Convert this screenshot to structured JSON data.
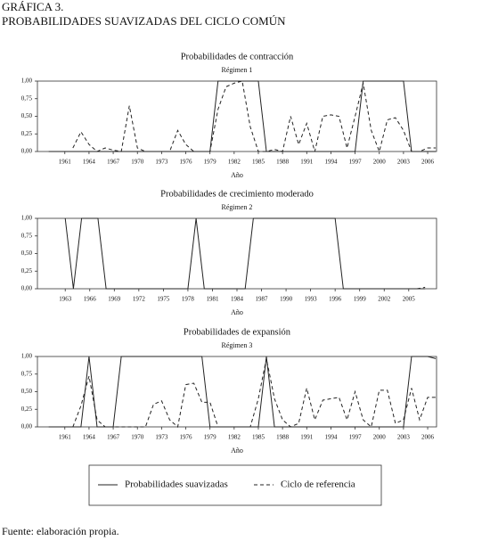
{
  "header": {
    "title": "GRÁFICA 3.",
    "subtitle": "PROBABILIDADES SUAVIZADAS DEL CICLO COMÚN"
  },
  "source": "Fuente: elaboración propia.",
  "chart_data": [
    {
      "type": "line",
      "title": "Probabilidades de contracción",
      "subtitle": "Régimen 1",
      "xlabel": "Año",
      "xlim": [
        1957.6,
        2007.1
      ],
      "xticks": [
        1961,
        1964,
        1967,
        1970,
        1973,
        1976,
        1979,
        1982,
        1985,
        1988,
        1991,
        1994,
        1997,
        2000,
        2003,
        2006
      ],
      "ylim": [
        0,
        1
      ],
      "yticks": [
        {
          "value": 0,
          "label": "0,00"
        },
        {
          "value": 0.25,
          "label": "0,25"
        },
        {
          "value": 0.5,
          "label": "0,50"
        },
        {
          "value": 0.75,
          "label": "0,75"
        },
        {
          "value": 1,
          "label": "1,00"
        }
      ],
      "x": [
        1959,
        1960,
        1961,
        1962,
        1963,
        1964,
        1965,
        1966,
        1967,
        1968,
        1969,
        1970,
        1971,
        1972,
        1973,
        1974,
        1975,
        1976,
        1977,
        1978,
        1979,
        1980,
        1981,
        1982,
        1983,
        1984,
        1985,
        1986,
        1987,
        1988,
        1989,
        1990,
        1991,
        1992,
        1993,
        1994,
        1995,
        1996,
        1997,
        1998,
        1999,
        2000,
        2001,
        2002,
        2003,
        2004,
        2005,
        2006,
        2007
      ],
      "series": [
        {
          "name": "Probabilidades suavizadas",
          "color": "#222222",
          "dash": false,
          "values": [
            0,
            0,
            0,
            0,
            0,
            0,
            0,
            0,
            0,
            0,
            0,
            0,
            0,
            0,
            0,
            0,
            0,
            0,
            0,
            0,
            0,
            1,
            1,
            1,
            1,
            1,
            1,
            0,
            0,
            0,
            0,
            0,
            0,
            0,
            0,
            0,
            0,
            0,
            0,
            1,
            1,
            1,
            1,
            1,
            1,
            0,
            0,
            0,
            0
          ]
        },
        {
          "name": "Ciclo de referencia",
          "color": "#222222",
          "dash": true,
          "values": [
            null,
            null,
            null,
            0.05,
            0.28,
            0.1,
            0,
            0.05,
            0.02,
            0,
            0.65,
            0.05,
            0,
            0,
            0,
            0,
            0.3,
            0.1,
            0,
            0,
            0,
            0.6,
            0.92,
            0.97,
            1,
            0.35,
            0,
            0,
            0.03,
            0,
            0.5,
            0.1,
            0.4,
            0,
            0.5,
            0.52,
            0.5,
            0.05,
            0.5,
            0.97,
            0.3,
            0,
            0.45,
            0.48,
            0.3,
            0,
            0,
            0.05,
            0.05
          ]
        }
      ]
    },
    {
      "type": "line",
      "title": "Probabilidades de crecimiento moderado",
      "subtitle": "Régimen 2",
      "xlabel": "Año",
      "xlim": [
        1959.6,
        2008.4
      ],
      "xticks": [
        1963,
        1966,
        1969,
        1972,
        1975,
        1978,
        1981,
        1984,
        1987,
        1990,
        1993,
        1996,
        1999,
        2002,
        2005
      ],
      "ylim": [
        0,
        1
      ],
      "yticks": [
        {
          "value": 0,
          "label": "0,00"
        },
        {
          "value": 0.25,
          "label": "0,25"
        },
        {
          "value": 0.5,
          "label": "0,50"
        },
        {
          "value": 0.75,
          "label": "0,75"
        },
        {
          "value": 1,
          "label": "1,00"
        }
      ],
      "x": [
        1963,
        1964,
        1965,
        1966,
        1967,
        1968,
        1969,
        1970,
        1971,
        1972,
        1973,
        1974,
        1975,
        1976,
        1977,
        1978,
        1979,
        1980,
        1981,
        1982,
        1983,
        1984,
        1985,
        1986,
        1987,
        1988,
        1989,
        1990,
        1991,
        1992,
        1993,
        1994,
        1995,
        1996,
        1997,
        1998,
        1999,
        2000,
        2001,
        2002,
        2003,
        2004,
        2005,
        2006,
        2007
      ],
      "series": [
        {
          "color": "#222222",
          "dash": false,
          "values": [
            1,
            0,
            1,
            1,
            1,
            0,
            0,
            0,
            0,
            0,
            0,
            0,
            0,
            0,
            0,
            0,
            1,
            0,
            0,
            0,
            0,
            0,
            0,
            1,
            1,
            1,
            1,
            1,
            1,
            1,
            1,
            1,
            1,
            1,
            0,
            0,
            0,
            0,
            0,
            0,
            0,
            0,
            0,
            0,
            0
          ]
        },
        {
          "color": "#222222",
          "dash": true,
          "values": [
            null,
            null,
            null,
            null,
            null,
            null,
            null,
            null,
            null,
            null,
            null,
            null,
            null,
            null,
            null,
            null,
            null,
            null,
            null,
            null,
            null,
            null,
            null,
            null,
            null,
            null,
            null,
            null,
            null,
            null,
            null,
            null,
            null,
            null,
            null,
            null,
            null,
            null,
            null,
            null,
            null,
            null,
            null,
            0,
            0.02
          ]
        }
      ]
    },
    {
      "type": "line",
      "title": "Probabilidades de expansión",
      "subtitle": "Régimen 3",
      "xlabel": "Año",
      "xlim": [
        1957.6,
        2007.1
      ],
      "xticks": [
        1961,
        1964,
        1967,
        1970,
        1973,
        1976,
        1979,
        1982,
        1985,
        1988,
        1991,
        1994,
        1997,
        2000,
        2003,
        2006
      ],
      "ylim": [
        0,
        1
      ],
      "yticks": [
        {
          "value": 0,
          "label": "0,00"
        },
        {
          "value": 0.25,
          "label": "0,25"
        },
        {
          "value": 0.5,
          "label": "0,50"
        },
        {
          "value": 0.75,
          "label": "0,75"
        },
        {
          "value": 1,
          "label": "1,00"
        }
      ],
      "x": [
        1959,
        1960,
        1961,
        1962,
        1963,
        1964,
        1965,
        1966,
        1967,
        1968,
        1969,
        1970,
        1971,
        1972,
        1973,
        1974,
        1975,
        1976,
        1977,
        1978,
        1979,
        1980,
        1981,
        1982,
        1983,
        1984,
        1985,
        1986,
        1987,
        1988,
        1989,
        1990,
        1991,
        1992,
        1993,
        1994,
        1995,
        1996,
        1997,
        1998,
        1999,
        2000,
        2001,
        2002,
        2003,
        2004,
        2005,
        2006,
        2007
      ],
      "series": [
        {
          "color": "#222222",
          "dash": false,
          "values": [
            0,
            0,
            0,
            0,
            0,
            1,
            0,
            0,
            0,
            1,
            1,
            1,
            1,
            1,
            1,
            1,
            1,
            1,
            1,
            1,
            0,
            0,
            0,
            0,
            0,
            0,
            0,
            1,
            0,
            0,
            0,
            0,
            0,
            0,
            0,
            0,
            0,
            0,
            0,
            0,
            0,
            0,
            0,
            0,
            0,
            1,
            1,
            1,
            0.97
          ]
        },
        {
          "color": "#222222",
          "dash": true,
          "values": [
            null,
            null,
            null,
            0,
            0.3,
            0.72,
            0.1,
            0,
            0,
            0,
            0,
            0,
            0,
            0.32,
            0.37,
            0.1,
            0,
            0.6,
            0.62,
            0.35,
            0.35,
            0,
            0,
            0,
            0,
            0,
            0.4,
            0.97,
            0.4,
            0.1,
            0,
            0.05,
            0.55,
            0.1,
            0.38,
            0.4,
            0.42,
            0.1,
            0.5,
            0.1,
            0,
            0.52,
            0.52,
            0.05,
            0.1,
            0.55,
            0.1,
            0.42,
            0.42
          ]
        }
      ]
    }
  ]
}
